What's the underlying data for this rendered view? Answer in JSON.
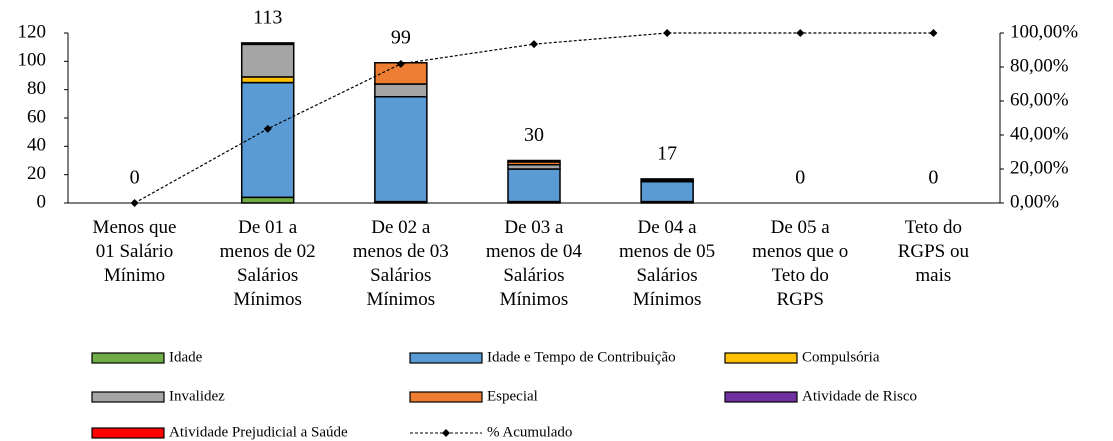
{
  "chart_data": {
    "type": "bar",
    "stacked": true,
    "categories": [
      "Menos que\n01 Salário\nMínimo",
      "De 01 a\nmenos de 02\nSalários\nMínimos",
      "De 02 a\nmenos de 03\nSalários\nMínimos",
      "De 03 a\nmenos de 04\nSalários\nMínimos",
      "De 04 a\nmenos de 05\nSalários\nMínimos",
      "De 05 a\nmenos que o\nTeto do\nRGPS",
      "Teto do\nRGPS ou\nmais"
    ],
    "series": [
      {
        "name": "Idade",
        "color": "#70ad47",
        "values": [
          0,
          4,
          1,
          1,
          1,
          0,
          0
        ]
      },
      {
        "name": "Idade e Tempo de Contribuição",
        "color": "#5b9bd5",
        "values": [
          0,
          81,
          74,
          23,
          14,
          0,
          0
        ]
      },
      {
        "name": "Compulsória",
        "color": "#ffc000",
        "values": [
          0,
          4,
          0,
          0,
          0,
          0,
          0
        ]
      },
      {
        "name": "Invalidez",
        "color": "#a5a5a5",
        "values": [
          0,
          23,
          9,
          3,
          1,
          0,
          0
        ]
      },
      {
        "name": "Especial",
        "color": "#ed7d31",
        "values": [
          0,
          0,
          15,
          2,
          0,
          0,
          0
        ]
      },
      {
        "name": "Atividade de Risco",
        "color": "#7030a0",
        "values": [
          0,
          1,
          0,
          1,
          1,
          0,
          0
        ]
      },
      {
        "name": "Atividade Prejudicial a Saúde",
        "color": "#ff0000",
        "values": [
          0,
          0,
          0,
          0,
          0,
          0,
          0
        ]
      },
      {
        "name": "% Acumulado",
        "color": "#000000",
        "type": "line",
        "axis": "y2",
        "values": [
          0,
          43.63,
          81.85,
          93.44,
          100,
          100,
          100
        ]
      }
    ],
    "totals": [
      0,
      113,
      99,
      30,
      17,
      0,
      0
    ],
    "ylim": [
      0,
      120
    ],
    "yticks": [
      0,
      20,
      40,
      60,
      80,
      100,
      120
    ],
    "y2lim": [
      0,
      100
    ],
    "y2ticks": [
      {
        "value": 0,
        "label": "0,00%"
      },
      {
        "value": 20,
        "label": "20,00%"
      },
      {
        "value": 40,
        "label": "40,00%"
      },
      {
        "value": 60,
        "label": "60,00%"
      },
      {
        "value": 80,
        "label": "80,00%"
      },
      {
        "value": 100,
        "label": "100,00%"
      }
    ],
    "legend": "bottom"
  }
}
